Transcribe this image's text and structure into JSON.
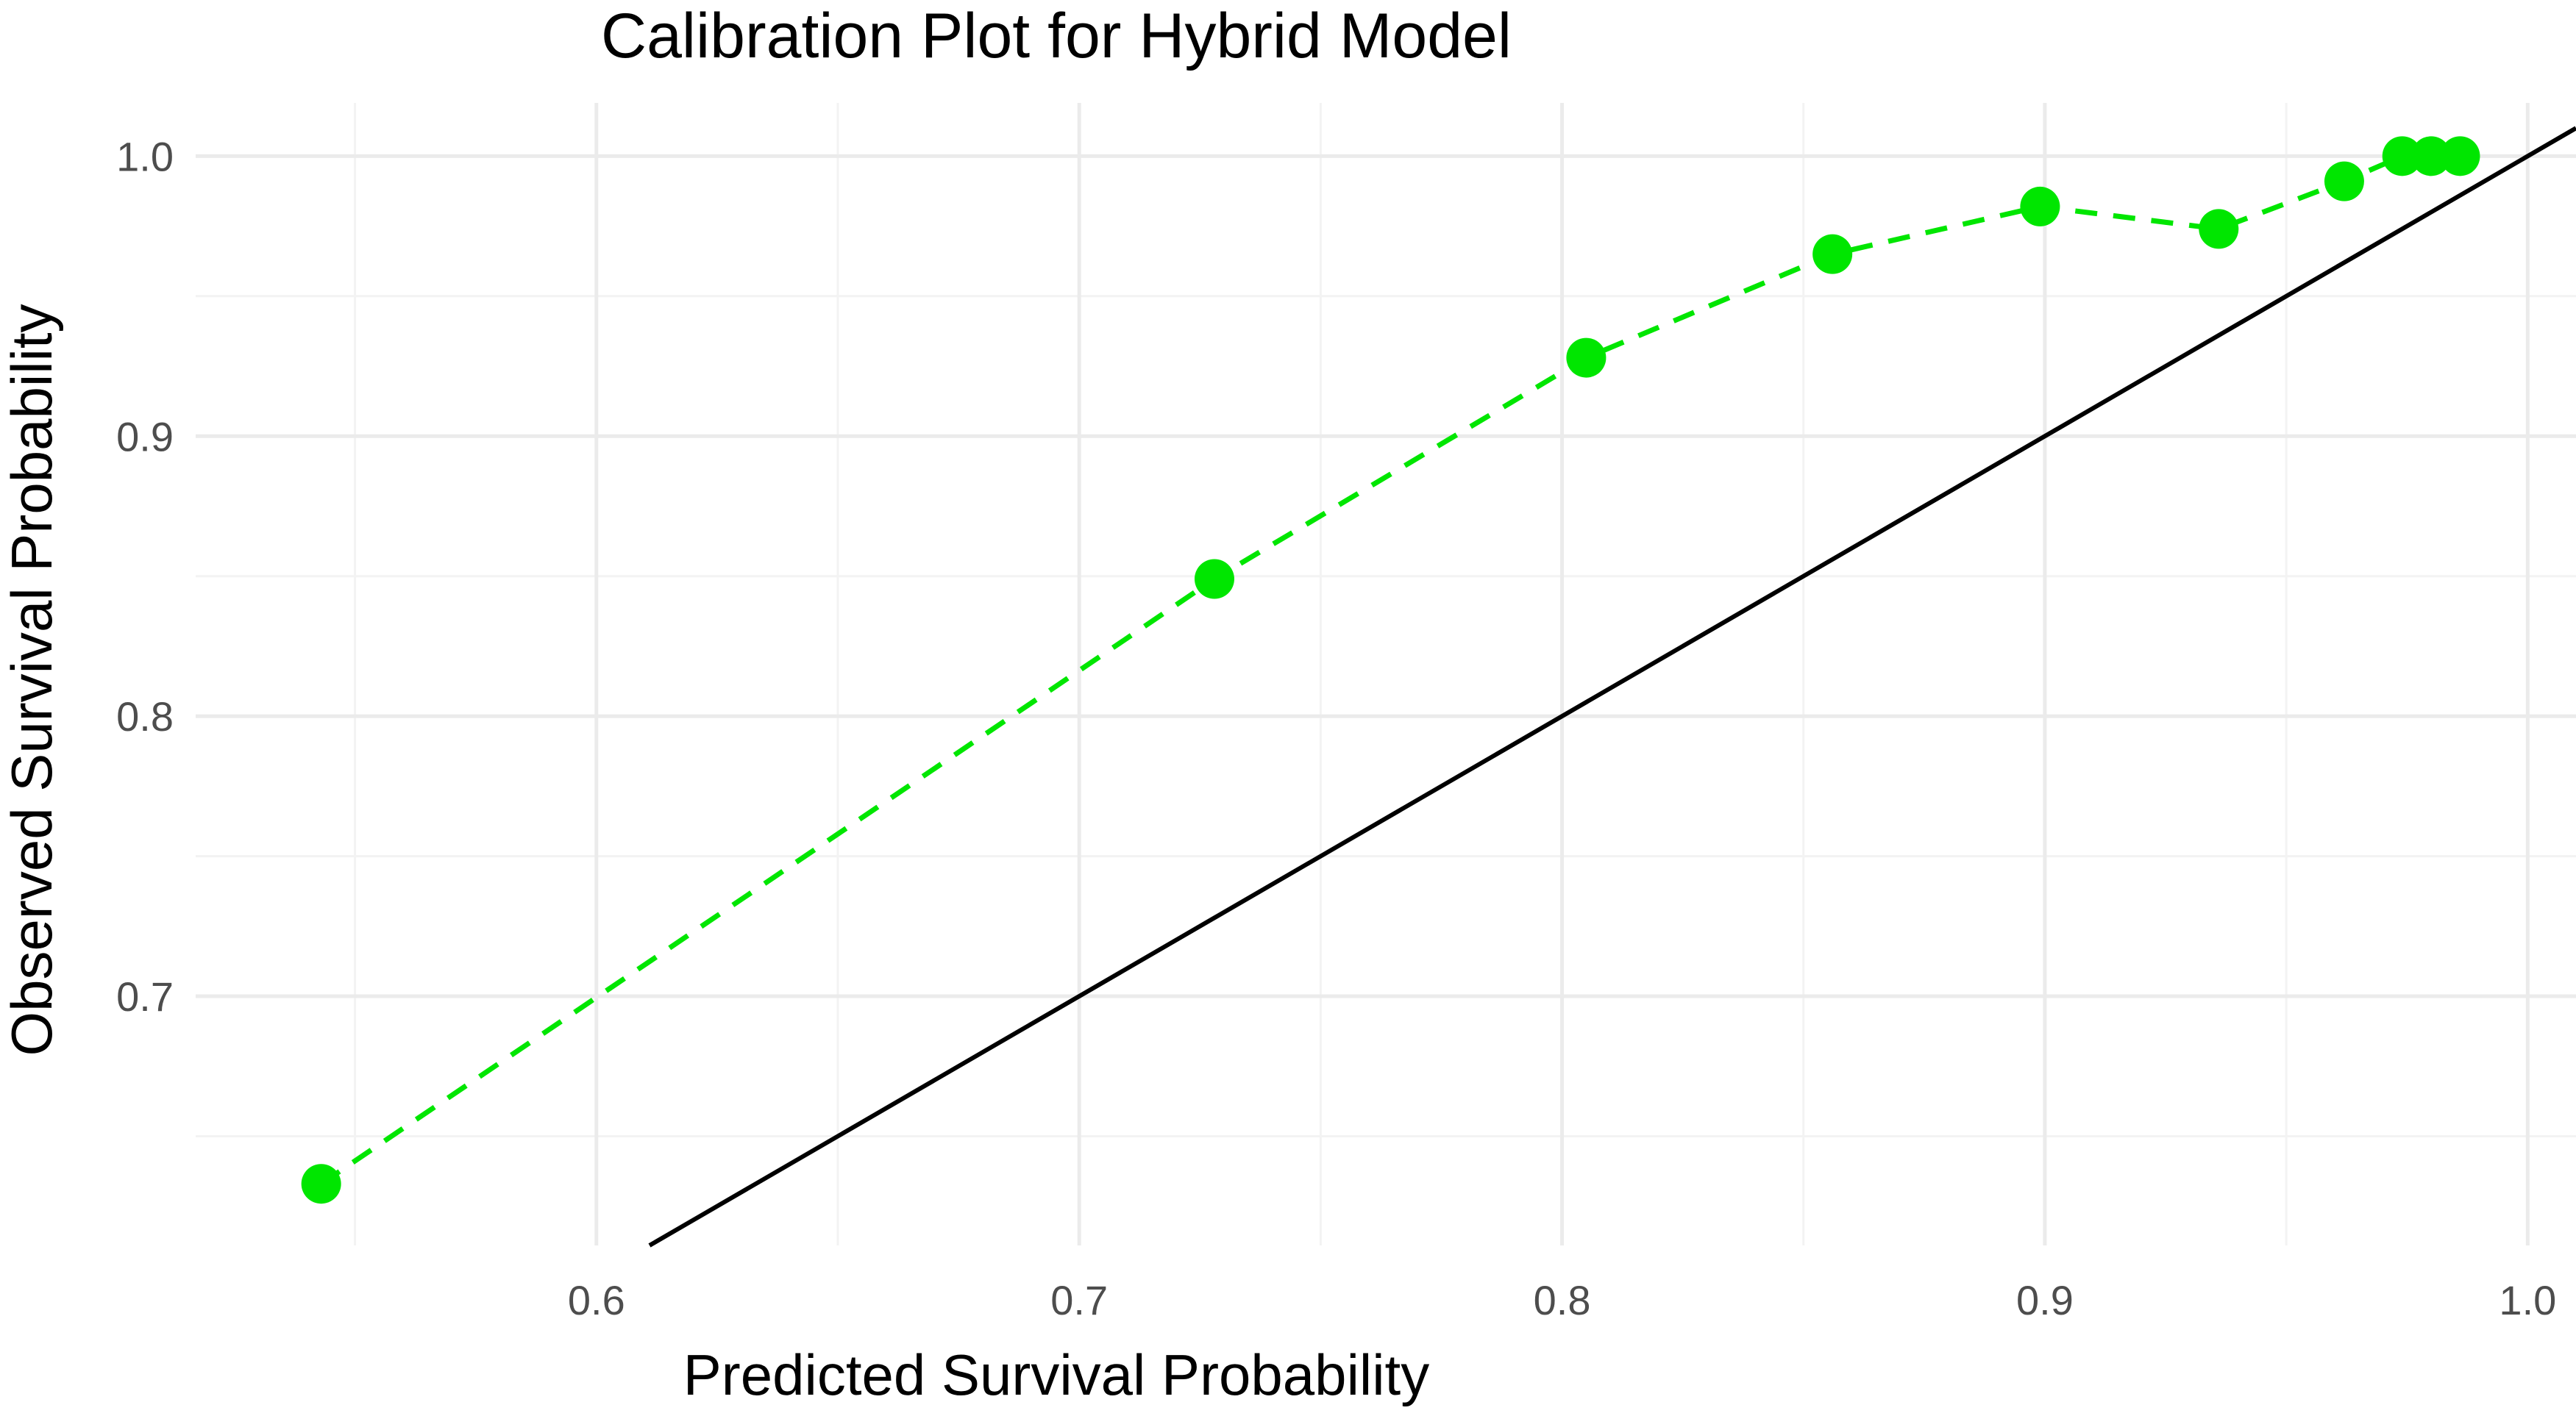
{
  "chart_data": {
    "type": "line",
    "title": "Calibration Plot for Hybrid Model",
    "xlabel": "Predicted Survival Probability",
    "ylabel": "Observed Survival Probability",
    "xlim": [
      0.517,
      1.01
    ],
    "ylim": [
      0.611,
      1.019
    ],
    "x_ticks": [
      0.6,
      0.7,
      0.8,
      0.9,
      1.0
    ],
    "x_tick_labels": [
      "0.6",
      "0.7",
      "0.8",
      "0.9",
      "1.0"
    ],
    "y_ticks": [
      0.7,
      0.8,
      0.9,
      1.0
    ],
    "y_tick_labels": [
      "0.7",
      "0.8",
      "0.9",
      "1.0"
    ],
    "grid": true,
    "reference_line": {
      "style": "solid",
      "color": "#000000",
      "slope": 1,
      "intercept": 0
    },
    "series": [
      {
        "style": "dashed-with-points",
        "color": "#00e600",
        "points": [
          {
            "x": 0.543,
            "y": 0.633
          },
          {
            "x": 0.728,
            "y": 0.849
          },
          {
            "x": 0.805,
            "y": 0.928
          },
          {
            "x": 0.856,
            "y": 0.965
          },
          {
            "x": 0.899,
            "y": 0.982
          },
          {
            "x": 0.936,
            "y": 0.974
          },
          {
            "x": 0.962,
            "y": 0.991
          },
          {
            "x": 0.974,
            "y": 1.0
          },
          {
            "x": 0.98,
            "y": 1.0
          },
          {
            "x": 0.986,
            "y": 1.0
          }
        ]
      }
    ]
  }
}
